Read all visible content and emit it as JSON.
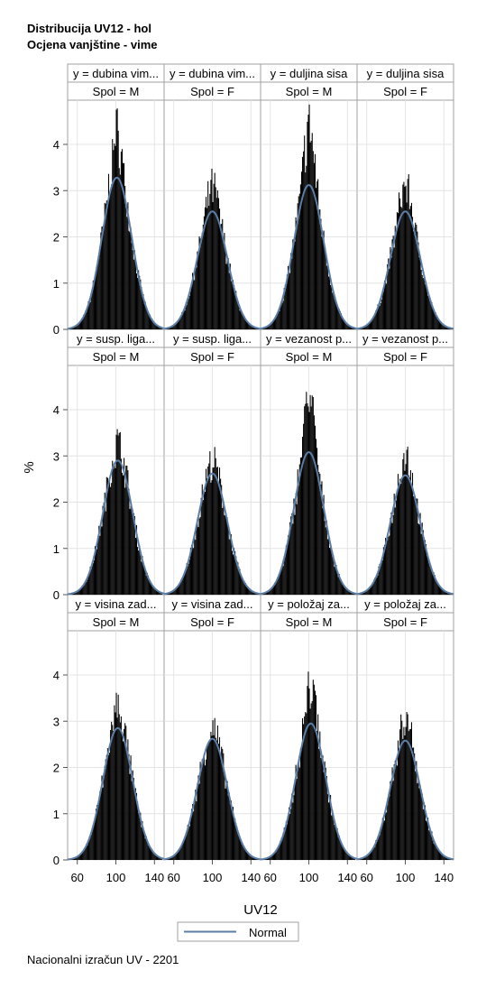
{
  "title_line1": "Distribucija UV12 - hol",
  "title_line2": "Ocjena vanjštine - vime",
  "footnote": "Nacionalni izračun UV - 2201",
  "chart_data": {
    "type": "histogram-panel",
    "xlabel": "UV12",
    "ylabel": "%",
    "xlim": [
      50,
      150
    ],
    "ylim": [
      0,
      4.8
    ],
    "x_ticks": [
      60,
      100,
      140
    ],
    "y_ticks": [
      0,
      1,
      2,
      3,
      4
    ],
    "legend": [
      {
        "label": "Normal",
        "color": "#5a7ea6"
      }
    ],
    "legend_position": "bottom-center",
    "bar_color": "#000000",
    "curve_color": "#5a7ea6",
    "grid": true,
    "rows": [
      {
        "headers": [
          "y = dubina vim...",
          "y = dubina vim...",
          "y = duljina sisa",
          "y = duljina sisa"
        ]
      },
      {
        "headers": [
          "y = susp. liga...",
          "y = susp. liga...",
          "y = vezanost p...",
          "y = vezanost p..."
        ]
      },
      {
        "headers": [
          "y = visina zad...",
          "y = visina zad...",
          "y = položaj za...",
          "y = položaj za..."
        ]
      }
    ],
    "spol_labels": [
      "Spol = M",
      "Spol = F",
      "Spol = M",
      "Spol = F"
    ],
    "panels": [
      {
        "row": 0,
        "col": 0,
        "normal_peak": 3.28,
        "hist_peak": 4.45,
        "center": 101
      },
      {
        "row": 0,
        "col": 1,
        "normal_peak": 2.55,
        "hist_peak": 3.2,
        "center": 100
      },
      {
        "row": 0,
        "col": 2,
        "normal_peak": 3.12,
        "hist_peak": 4.65,
        "center": 100
      },
      {
        "row": 0,
        "col": 3,
        "normal_peak": 2.55,
        "hist_peak": 3.28,
        "center": 100
      },
      {
        "row": 1,
        "col": 0,
        "normal_peak": 2.9,
        "hist_peak": 3.35,
        "center": 102
      },
      {
        "row": 1,
        "col": 1,
        "normal_peak": 2.62,
        "hist_peak": 2.9,
        "center": 100
      },
      {
        "row": 1,
        "col": 2,
        "normal_peak": 3.08,
        "hist_peak": 4.6,
        "center": 100
      },
      {
        "row": 1,
        "col": 3,
        "normal_peak": 2.58,
        "hist_peak": 3.15,
        "center": 100
      },
      {
        "row": 2,
        "col": 0,
        "normal_peak": 2.85,
        "hist_peak": 3.38,
        "center": 102
      },
      {
        "row": 2,
        "col": 1,
        "normal_peak": 2.62,
        "hist_peak": 2.88,
        "center": 100
      },
      {
        "row": 2,
        "col": 2,
        "normal_peak": 2.95,
        "hist_peak": 4.0,
        "center": 102
      },
      {
        "row": 2,
        "col": 3,
        "normal_peak": 2.58,
        "hist_peak": 3.25,
        "center": 100
      }
    ]
  }
}
